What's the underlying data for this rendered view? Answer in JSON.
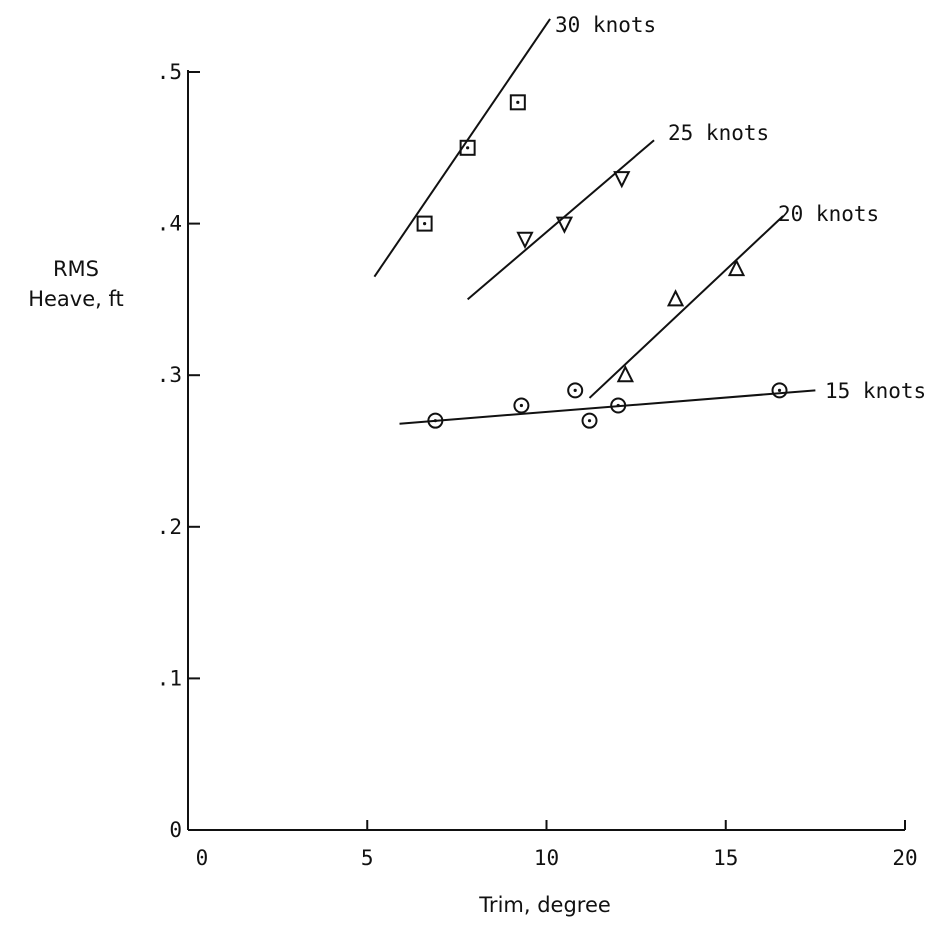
{
  "chart_data": {
    "type": "scatter",
    "xlabel": "Trim, degree",
    "ylabel_lines": [
      "RMS",
      "Heave, ft"
    ],
    "xlim": [
      0,
      20
    ],
    "ylim": [
      0,
      0.5
    ],
    "x_ticks": [
      {
        "value": 0,
        "label": "0"
      },
      {
        "value": 5,
        "label": "5"
      },
      {
        "value": 10,
        "label": "10"
      },
      {
        "value": 15,
        "label": "15"
      },
      {
        "value": 20,
        "label": "20"
      }
    ],
    "y_ticks": [
      {
        "value": 0,
        "label": "0"
      },
      {
        "value": 0.1,
        "label": ".1"
      },
      {
        "value": 0.2,
        "label": ".2"
      },
      {
        "value": 0.3,
        "label": ".3"
      },
      {
        "value": 0.4,
        "label": ".4"
      },
      {
        "value": 0.5,
        "label": ".5"
      }
    ],
    "grid": false,
    "series": [
      {
        "name": "30 knots",
        "marker": "square",
        "points": [
          [
            6.6,
            0.4
          ],
          [
            7.8,
            0.45
          ],
          [
            9.2,
            0.48
          ]
        ],
        "fit_line": [
          [
            5.2,
            0.365
          ],
          [
            10.1,
            0.535
          ]
        ]
      },
      {
        "name": "25 knots",
        "marker": "triangle-down",
        "points": [
          [
            9.4,
            0.39
          ],
          [
            10.5,
            0.4
          ],
          [
            12.1,
            0.43
          ]
        ],
        "fit_line": [
          [
            7.8,
            0.35
          ],
          [
            13.0,
            0.455
          ]
        ]
      },
      {
        "name": "20 knots",
        "marker": "triangle-up",
        "points": [
          [
            12.2,
            0.3
          ],
          [
            13.6,
            0.35
          ],
          [
            15.3,
            0.37
          ]
        ],
        "fit_line": [
          [
            11.2,
            0.285
          ],
          [
            16.6,
            0.405
          ]
        ]
      },
      {
        "name": "15 knots",
        "marker": "circle-dot",
        "points": [
          [
            6.9,
            0.27
          ],
          [
            9.3,
            0.28
          ],
          [
            10.8,
            0.29
          ],
          [
            11.2,
            0.27
          ],
          [
            12.0,
            0.28
          ],
          [
            16.5,
            0.29
          ]
        ],
        "fit_line": [
          [
            5.9,
            0.268
          ],
          [
            17.5,
            0.29
          ]
        ]
      }
    ]
  }
}
